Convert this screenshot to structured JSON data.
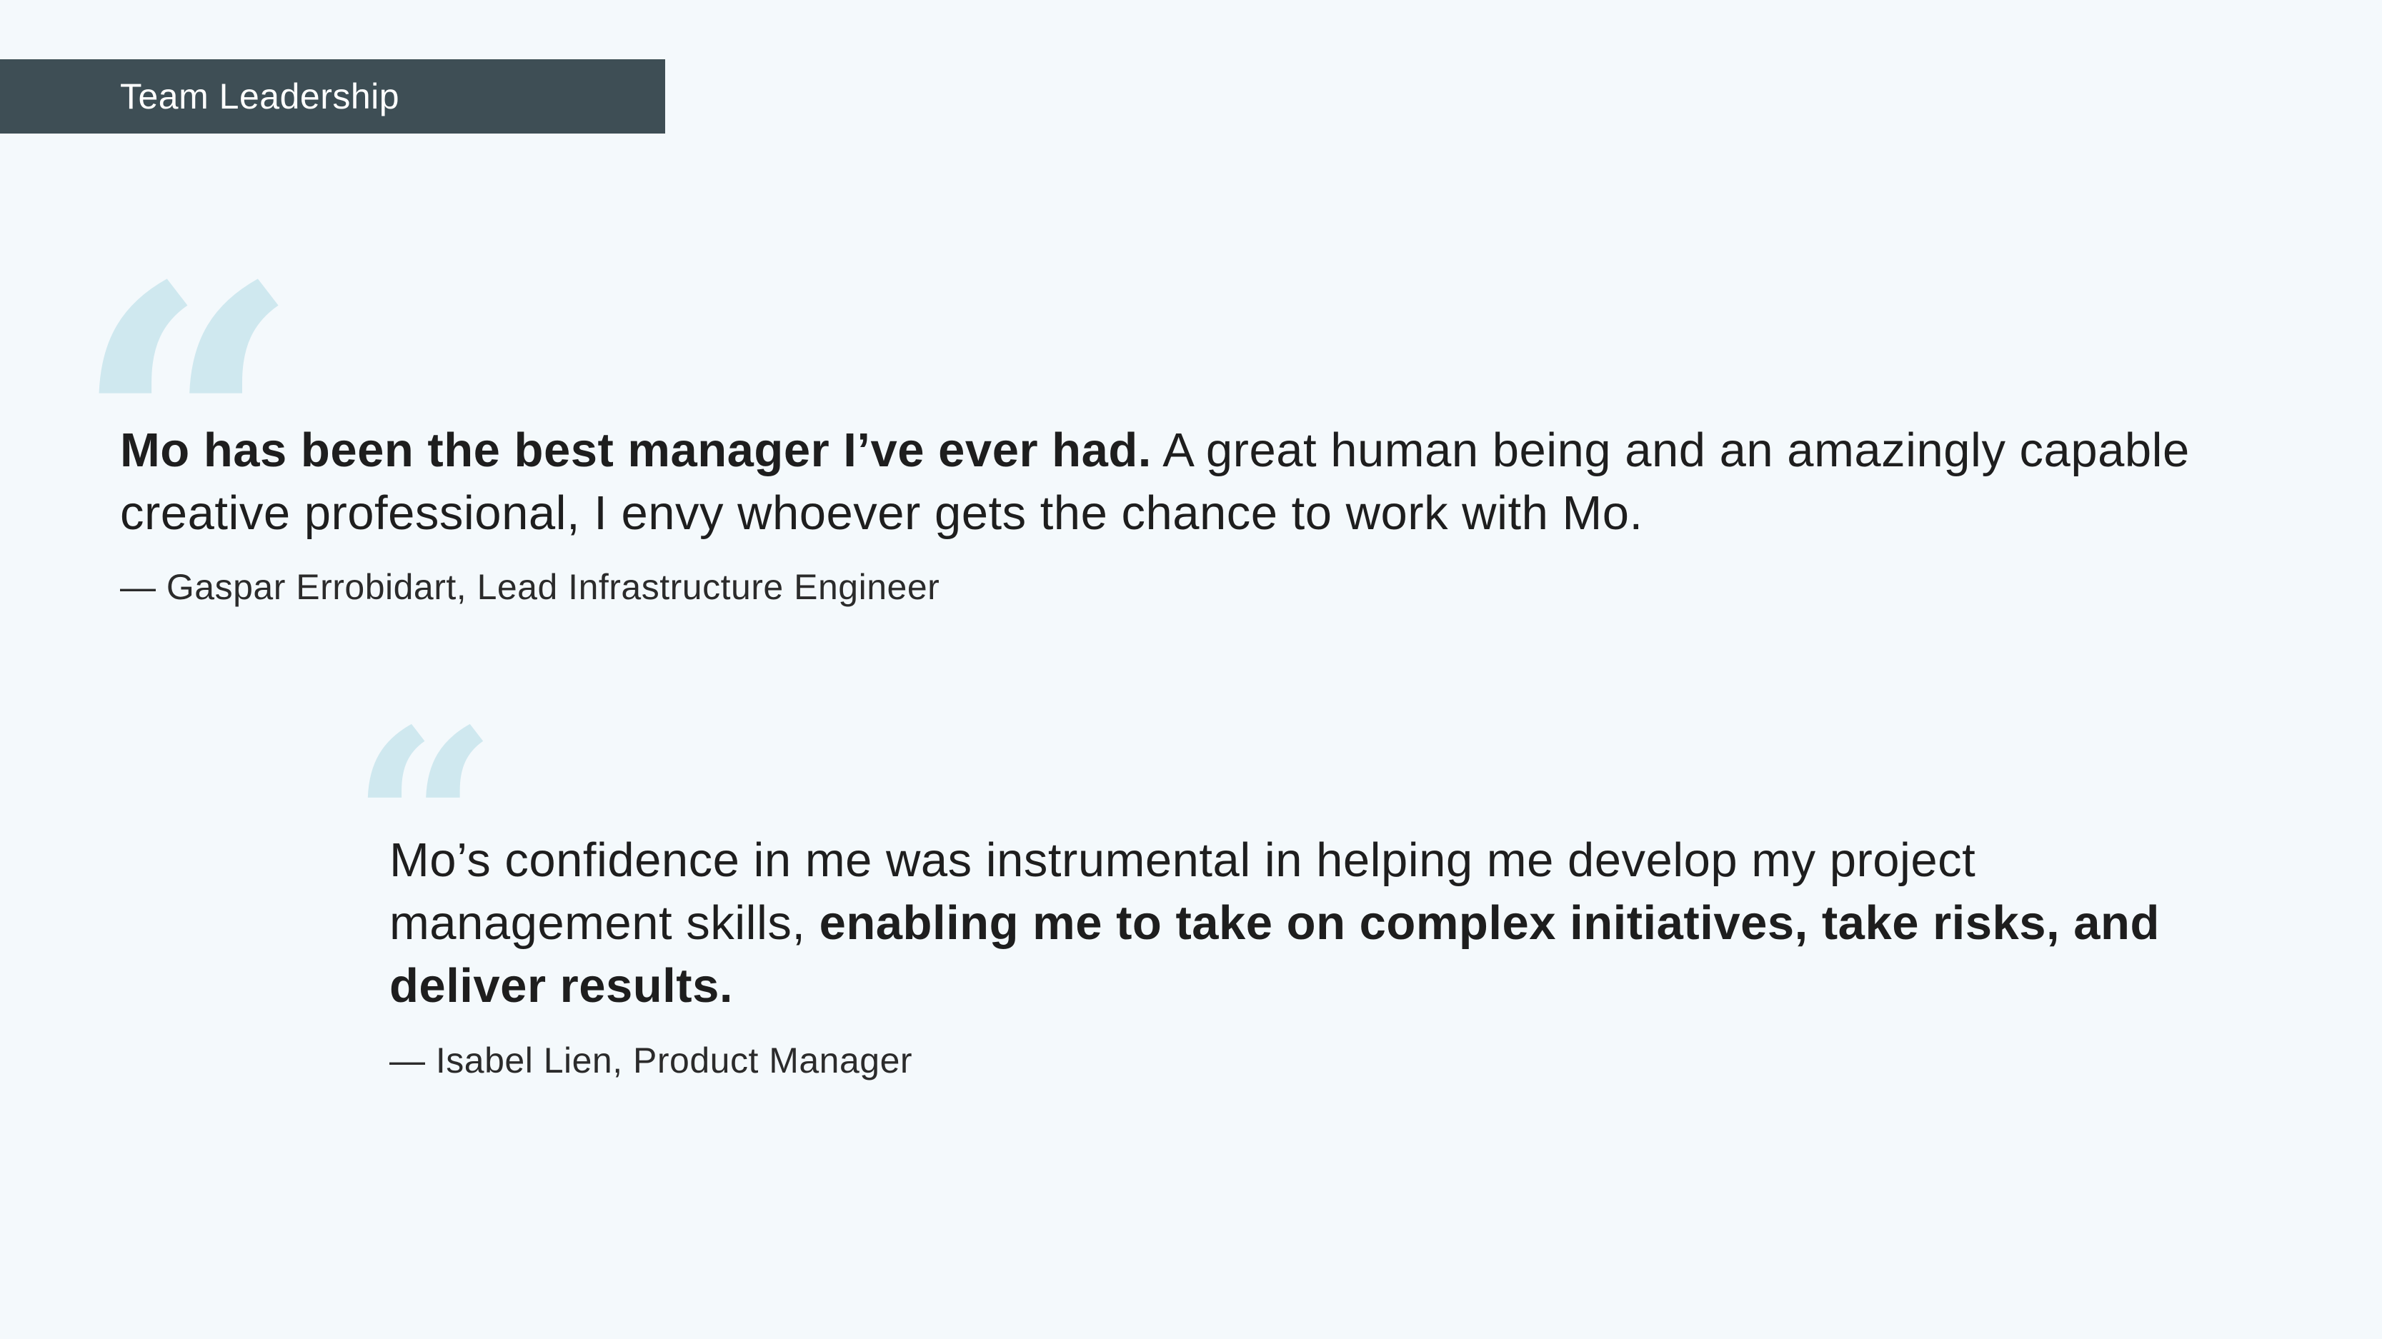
{
  "header": {
    "section_tag": "Team Leadership"
  },
  "quote_glyph": "“",
  "testimonials": [
    {
      "bold_lead": "Mo has been the best manager I’ve ever had.",
      "text": " A great human being and an amazingly capable creative professional, I envy whoever gets the chance to work with Mo.",
      "attribution": "— Gaspar Errobidart, Lead Infrastructure Engineer"
    },
    {
      "text": "Mo’s confidence in me was instrumental in helping me develop my project management skills, ",
      "bold_tail": "enabling me to take on complex initiatives, take risks, and deliver results.",
      "attribution": "— Isabel Lien, Product Manager"
    }
  ],
  "colors": {
    "background": "#f4f9fc",
    "tag_background": "#3e4e55",
    "quote_mark": "#cfe8ef",
    "text": "#1e1e1e"
  }
}
